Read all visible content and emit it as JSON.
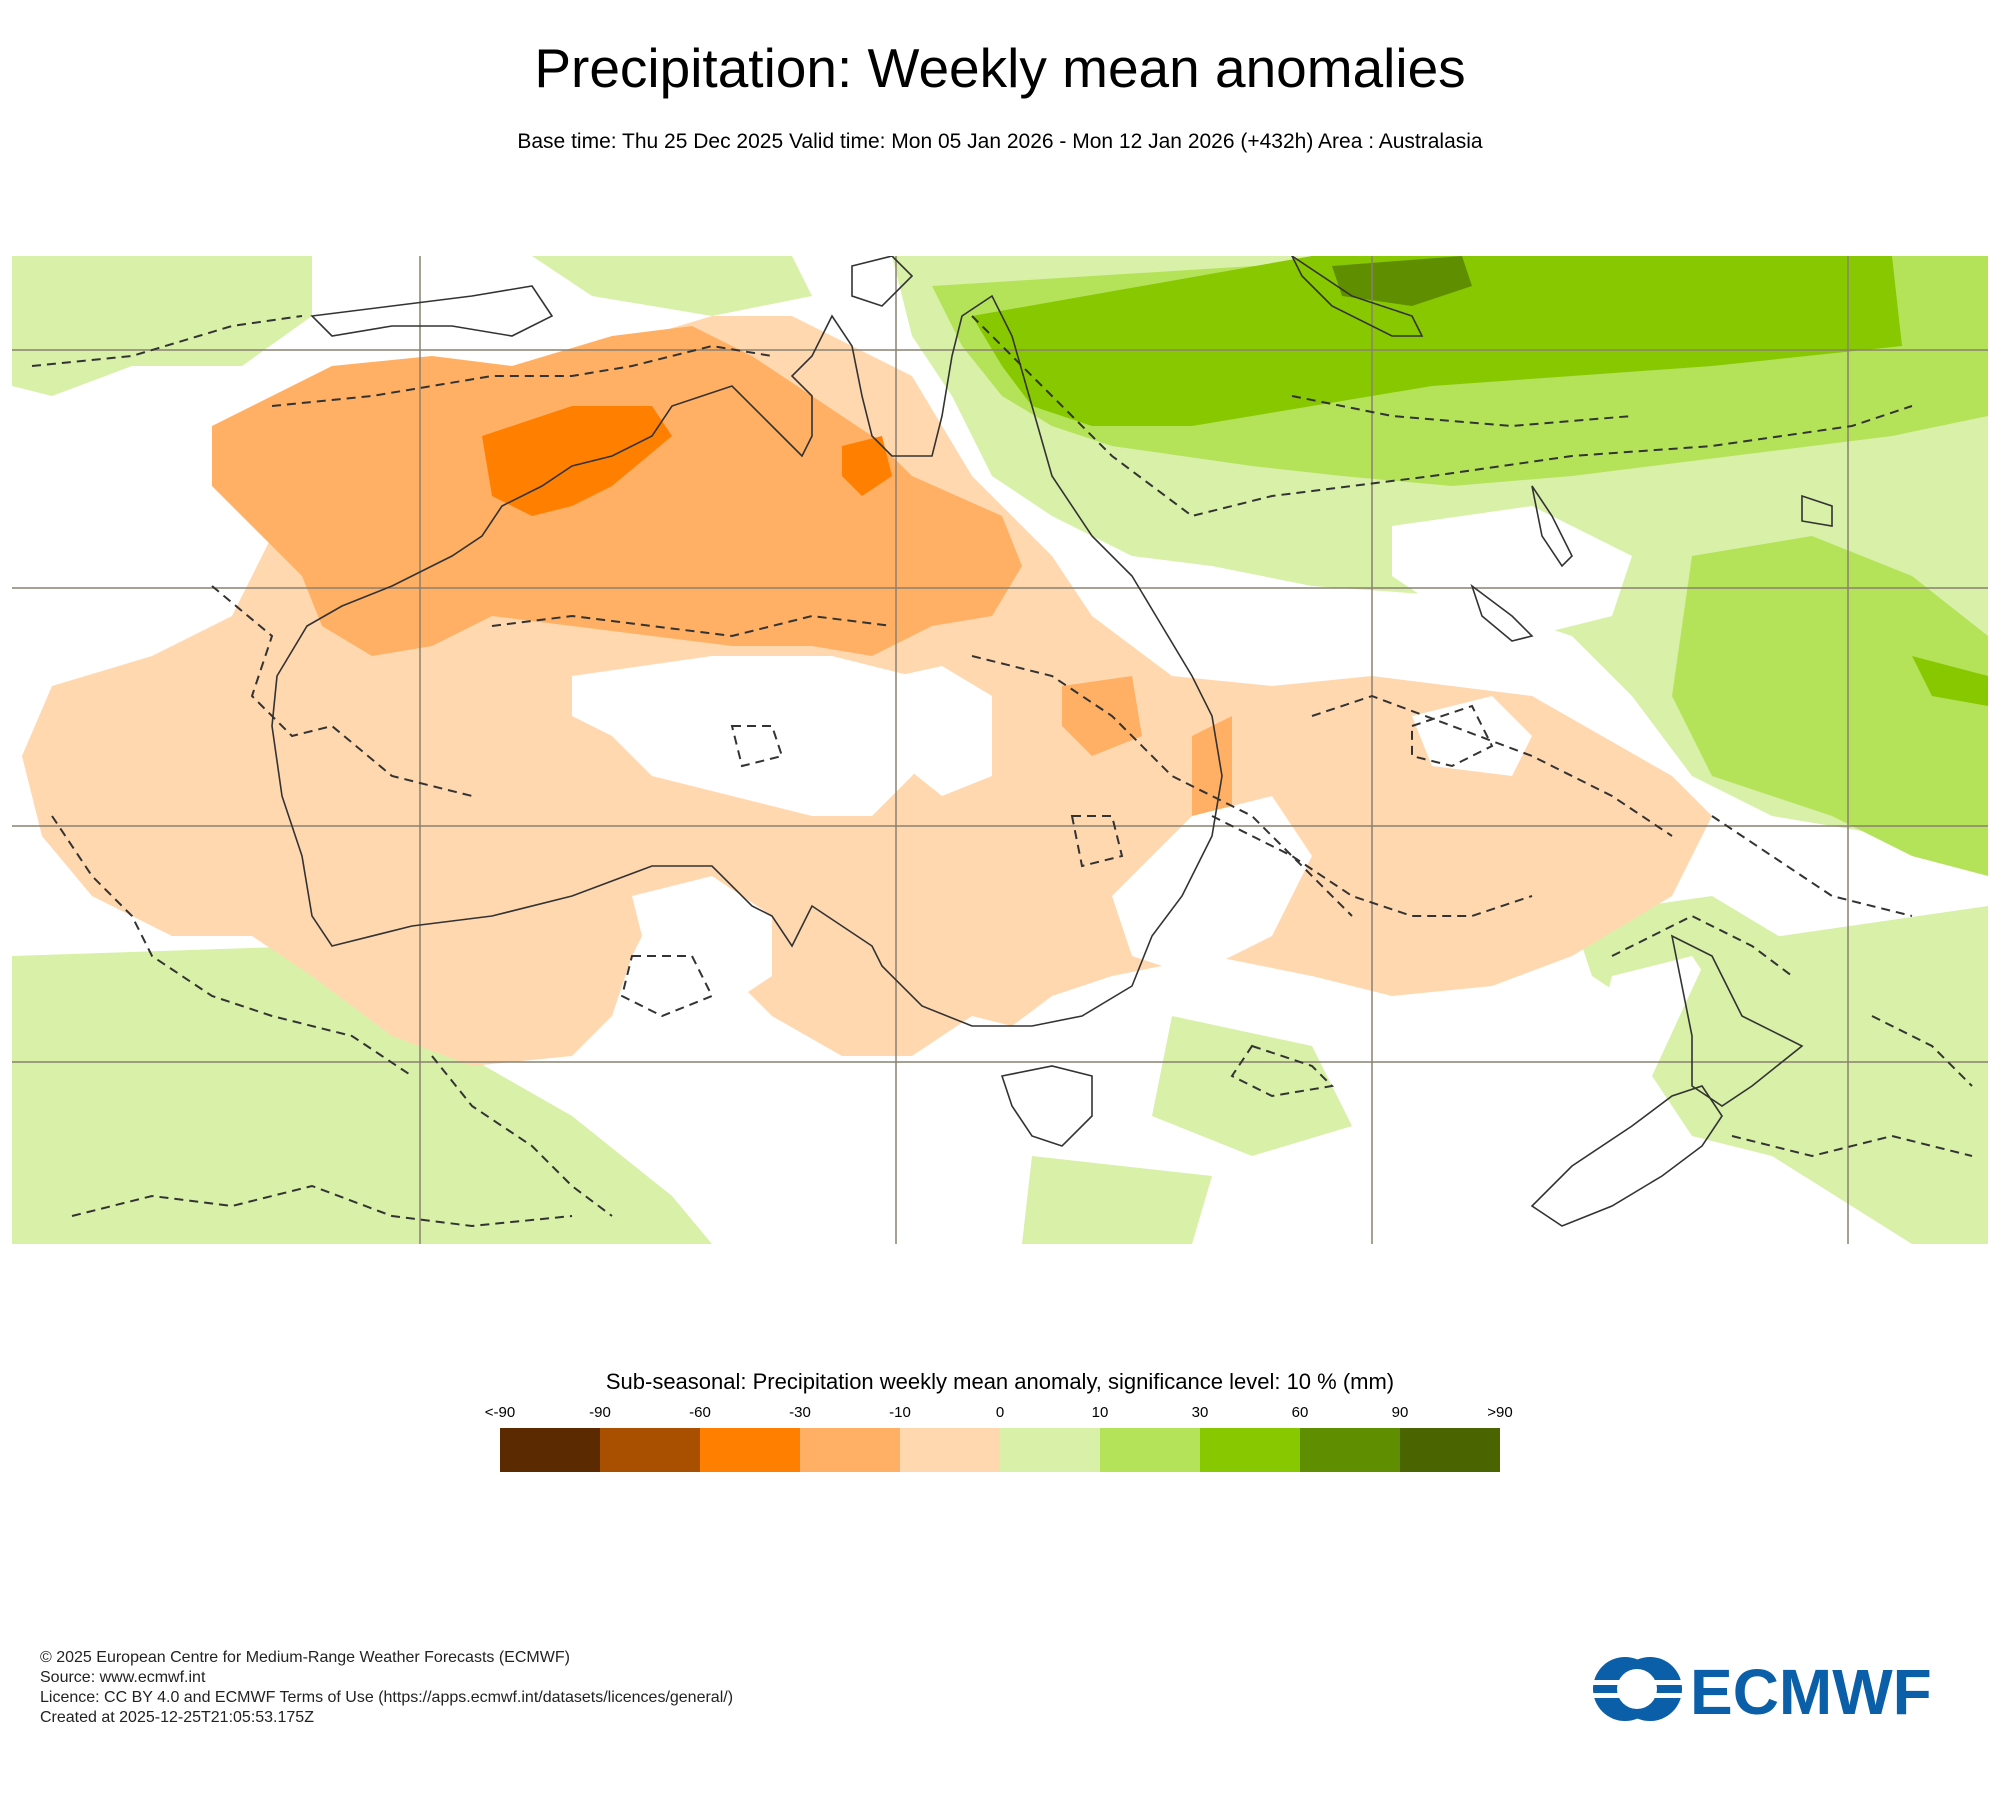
{
  "header": {
    "title": "Precipitation: Weekly mean anomalies",
    "subtitle": "Base time: Thu 25 Dec 2025 Valid time: Mon 05 Jan 2026 - Mon 12 Jan 2026 (+432h) Area : Australasia"
  },
  "legend": {
    "title": "Sub-seasonal: Precipitation weekly mean anomaly, significance level: 10 % (mm)",
    "ticks": [
      "<-90",
      "-90",
      "-60",
      "-30",
      "-10",
      "0",
      "10",
      "30",
      "60",
      "90",
      ">90"
    ],
    "colors": [
      "#5c2a00",
      "#a84f00",
      "#ff8000",
      "#ffb064",
      "#ffd8b0",
      "#d8f0a8",
      "#b4e35a",
      "#88c800",
      "#5f8f00",
      "#4a6400"
    ]
  },
  "map": {
    "land_outline_color": "#333333",
    "grid_color": "#8a8070",
    "significance_contour": "dashed"
  },
  "footer": {
    "line1": "© 2025 European Centre for Medium-Range Weather Forecasts (ECMWF)",
    "line2": "Source: www.ecmwf.int",
    "line3": "Licence: CC BY 4.0 and ECMWF Terms of Use (https://apps.ecmwf.int/datasets/licences/general/)",
    "line4": "Created at 2025-12-25T21:05:53.175Z"
  },
  "logo": {
    "text": "ECMWF",
    "color": "#0a5fa8"
  }
}
